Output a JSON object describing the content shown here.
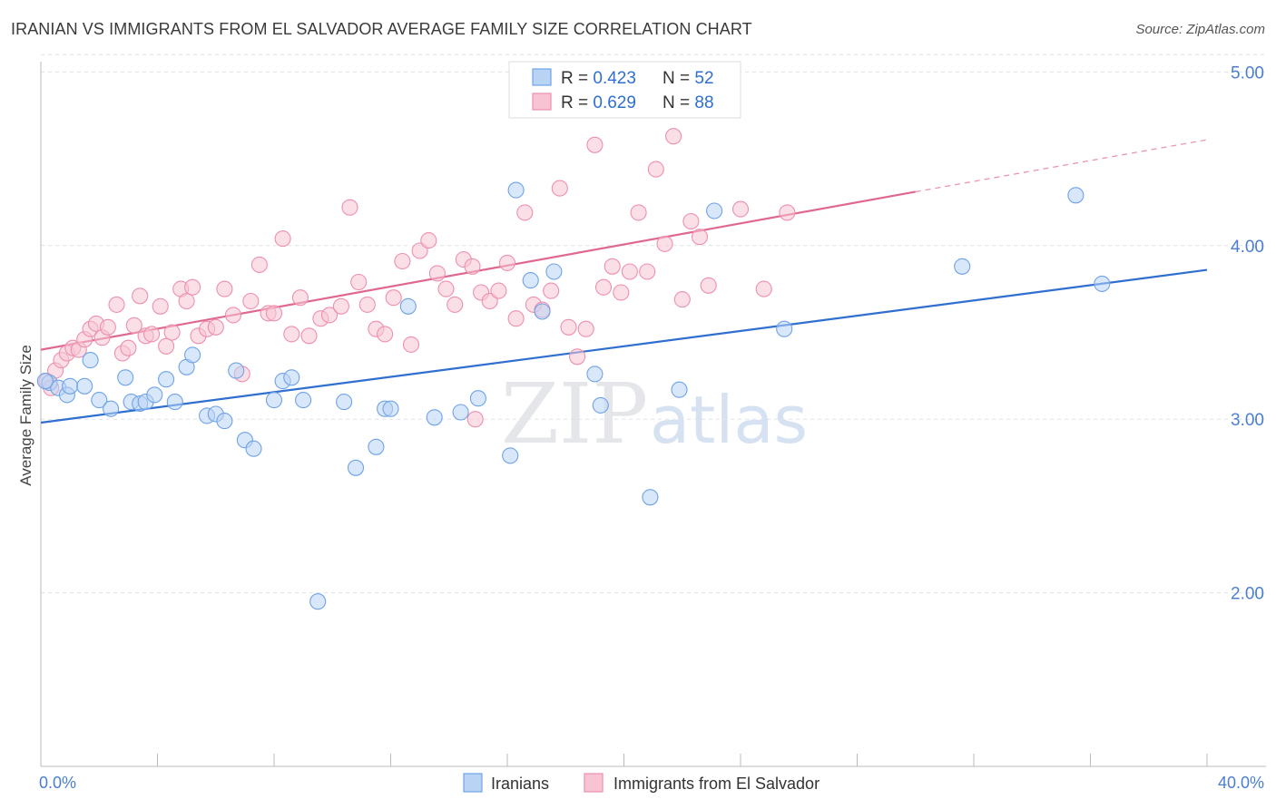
{
  "title": "IRANIAN VS IMMIGRANTS FROM EL SALVADOR AVERAGE FAMILY SIZE CORRELATION CHART",
  "source": "Source: ZipAtlas.com",
  "colors": {
    "blue": "#6fa3e6",
    "blue_fill": "#b9d3f5",
    "blue_line": "#2f6fd0",
    "pink": "#ee8fae",
    "pink_fill": "#f8c4d4",
    "pink_line": "#e06890",
    "tick_label": "#4a7fd0",
    "grid": "#dde3ea"
  },
  "legend": {
    "rows": [
      {
        "r_label": "R = ",
        "r_value": "0.423",
        "n_label": "N = ",
        "n_value": "52"
      },
      {
        "r_label": "R = ",
        "r_value": "0.629",
        "n_label": "N = ",
        "n_value": "88"
      }
    ]
  },
  "bottom_legend": [
    "Iranians",
    "Immigrants from El Salvador"
  ],
  "watermark": {
    "zip": "ZIP",
    "atlas": "atlas"
  },
  "chart_data": {
    "type": "scatter",
    "xlabel": "",
    "ylabel": "Average Family Size",
    "xlim": [
      0,
      40
    ],
    "ylim": [
      1.0,
      5.2
    ],
    "x_tick_labels": [
      "0.0%",
      "40.0%"
    ],
    "y_ticks": [
      2.0,
      3.0,
      4.0,
      5.0
    ],
    "y_tick_labels": [
      "2.00",
      "3.00",
      "4.00",
      "5.00"
    ],
    "grid": "horizontal dashed",
    "legend_position": "top-center",
    "series": [
      {
        "name": "Iranians",
        "r": 0.423,
        "n": 52,
        "trend": {
          "x": [
            0,
            40
          ],
          "y": [
            2.98,
            3.86
          ]
        },
        "points": [
          [
            0.3,
            3.21
          ],
          [
            0.6,
            3.18
          ],
          [
            0.9,
            3.14
          ],
          [
            1.0,
            3.19
          ],
          [
            1.5,
            3.19
          ],
          [
            1.7,
            3.34
          ],
          [
            2.0,
            3.11
          ],
          [
            2.4,
            3.06
          ],
          [
            2.9,
            3.24
          ],
          [
            3.1,
            3.1
          ],
          [
            3.4,
            3.09
          ],
          [
            3.6,
            3.1
          ],
          [
            3.9,
            3.14
          ],
          [
            4.3,
            3.23
          ],
          [
            4.6,
            3.1
          ],
          [
            5.0,
            3.3
          ],
          [
            5.2,
            3.37
          ],
          [
            5.7,
            3.02
          ],
          [
            6.0,
            3.03
          ],
          [
            6.3,
            2.99
          ],
          [
            6.7,
            3.28
          ],
          [
            7.0,
            2.88
          ],
          [
            7.3,
            2.83
          ],
          [
            8.0,
            3.11
          ],
          [
            8.3,
            3.22
          ],
          [
            8.6,
            3.24
          ],
          [
            9.0,
            3.11
          ],
          [
            9.5,
            1.95
          ],
          [
            10.4,
            3.1
          ],
          [
            10.8,
            2.72
          ],
          [
            11.5,
            2.84
          ],
          [
            11.8,
            3.06
          ],
          [
            12.0,
            3.06
          ],
          [
            12.6,
            3.65
          ],
          [
            13.5,
            3.01
          ],
          [
            14.4,
            3.04
          ],
          [
            15.0,
            3.12
          ],
          [
            16.1,
            2.79
          ],
          [
            16.3,
            4.32
          ],
          [
            16.8,
            3.8
          ],
          [
            17.2,
            3.62
          ],
          [
            17.6,
            3.85
          ],
          [
            19.0,
            3.26
          ],
          [
            19.2,
            3.08
          ],
          [
            20.9,
            2.55
          ],
          [
            21.9,
            3.17
          ],
          [
            23.1,
            4.2
          ],
          [
            25.5,
            3.52
          ],
          [
            31.6,
            3.88
          ],
          [
            35.5,
            4.29
          ],
          [
            36.4,
            3.78
          ],
          [
            0.15,
            3.22
          ]
        ]
      },
      {
        "name": "Immigrants from El Salvador",
        "r": 0.629,
        "n": 88,
        "trend": {
          "x": [
            0,
            30
          ],
          "y": [
            3.4,
            4.31
          ]
        },
        "trend_dashed": {
          "x": [
            30,
            40
          ],
          "y": [
            4.31,
            4.61
          ]
        },
        "points": [
          [
            0.2,
            3.22
          ],
          [
            0.5,
            3.28
          ],
          [
            0.7,
            3.34
          ],
          [
            0.9,
            3.38
          ],
          [
            1.1,
            3.41
          ],
          [
            1.3,
            3.4
          ],
          [
            1.5,
            3.46
          ],
          [
            1.7,
            3.52
          ],
          [
            1.9,
            3.55
          ],
          [
            2.1,
            3.47
          ],
          [
            2.3,
            3.53
          ],
          [
            2.6,
            3.66
          ],
          [
            2.8,
            3.38
          ],
          [
            3.0,
            3.41
          ],
          [
            3.2,
            3.54
          ],
          [
            3.4,
            3.71
          ],
          [
            3.6,
            3.48
          ],
          [
            3.8,
            3.49
          ],
          [
            4.1,
            3.65
          ],
          [
            4.3,
            3.42
          ],
          [
            4.5,
            3.5
          ],
          [
            4.8,
            3.75
          ],
          [
            5.0,
            3.68
          ],
          [
            5.2,
            3.76
          ],
          [
            5.4,
            3.48
          ],
          [
            5.7,
            3.52
          ],
          [
            6.0,
            3.53
          ],
          [
            6.3,
            3.75
          ],
          [
            6.6,
            3.6
          ],
          [
            6.9,
            3.26
          ],
          [
            7.2,
            3.68
          ],
          [
            7.5,
            3.89
          ],
          [
            7.8,
            3.61
          ],
          [
            8.0,
            3.61
          ],
          [
            8.3,
            4.04
          ],
          [
            8.6,
            3.49
          ],
          [
            8.9,
            3.7
          ],
          [
            9.2,
            3.48
          ],
          [
            9.6,
            3.58
          ],
          [
            9.9,
            3.6
          ],
          [
            10.3,
            3.65
          ],
          [
            10.6,
            4.22
          ],
          [
            10.9,
            3.79
          ],
          [
            11.2,
            3.66
          ],
          [
            11.5,
            3.52
          ],
          [
            11.8,
            3.49
          ],
          [
            12.1,
            3.7
          ],
          [
            12.4,
            3.91
          ],
          [
            12.7,
            3.43
          ],
          [
            13.0,
            3.97
          ],
          [
            13.3,
            4.03
          ],
          [
            13.6,
            3.84
          ],
          [
            13.9,
            3.75
          ],
          [
            14.2,
            3.66
          ],
          [
            14.5,
            3.92
          ],
          [
            14.8,
            3.88
          ],
          [
            15.1,
            3.73
          ],
          [
            15.4,
            3.68
          ],
          [
            15.7,
            3.74
          ],
          [
            16.0,
            3.9
          ],
          [
            16.3,
            3.58
          ],
          [
            16.6,
            4.19
          ],
          [
            16.9,
            3.66
          ],
          [
            17.2,
            3.63
          ],
          [
            17.5,
            3.74
          ],
          [
            17.8,
            4.33
          ],
          [
            18.1,
            3.53
          ],
          [
            18.4,
            3.36
          ],
          [
            18.7,
            3.52
          ],
          [
            19.0,
            4.58
          ],
          [
            19.3,
            3.76
          ],
          [
            19.6,
            3.88
          ],
          [
            19.9,
            3.73
          ],
          [
            20.2,
            3.85
          ],
          [
            20.5,
            4.19
          ],
          [
            20.8,
            3.85
          ],
          [
            21.1,
            4.44
          ],
          [
            21.4,
            4.01
          ],
          [
            21.7,
            4.63
          ],
          [
            22.0,
            3.69
          ],
          [
            22.3,
            4.14
          ],
          [
            22.6,
            4.05
          ],
          [
            22.9,
            3.77
          ],
          [
            24.0,
            4.21
          ],
          [
            24.8,
            3.75
          ],
          [
            25.6,
            4.19
          ],
          [
            14.9,
            3.0
          ],
          [
            0.35,
            3.18
          ]
        ]
      }
    ]
  }
}
